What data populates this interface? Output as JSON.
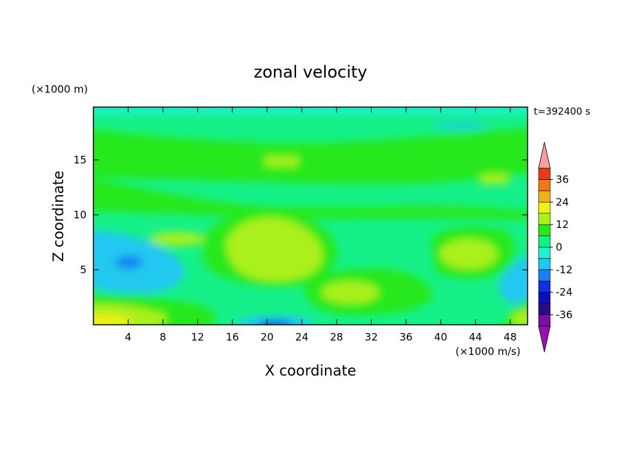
{
  "chart_data": {
    "type": "heatmap",
    "title": "zonal velocity",
    "xlabel": "X coordinate",
    "ylabel": "Z coordinate",
    "x_unit": "(×1000 m/s)",
    "y_unit": "(×1000 m)",
    "time_label": "t=392400 s",
    "xlim": [
      0,
      50
    ],
    "ylim": [
      0,
      19.8
    ],
    "x_ticks": [
      4,
      8,
      12,
      16,
      20,
      24,
      28,
      32,
      36,
      40,
      44,
      48
    ],
    "y_ticks": [
      5,
      10,
      15
    ],
    "colorbar": {
      "levels": [
        -42,
        -36,
        -30,
        -24,
        -18,
        -12,
        -6,
        0,
        6,
        12,
        18,
        24,
        30,
        36,
        42
      ],
      "tick_labels": [
        "36",
        "24",
        "12",
        "0",
        "-12",
        "-24",
        "-36"
      ],
      "tick_values": [
        36,
        24,
        12,
        0,
        -12,
        -24,
        -36
      ],
      "colors": [
        "#7a0fa0",
        "#2a0a8c",
        "#0a10b4",
        "#1030e6",
        "#1880f0",
        "#20c8f0",
        "#1ef0d0",
        "#16f088",
        "#28e81a",
        "#aaf01a",
        "#eef018",
        "#f0b018",
        "#f07818",
        "#e83a18",
        "#e81818"
      ],
      "extend_high_color": "#f4a0a0",
      "extend_low_color": "#9a10b0"
    }
  }
}
